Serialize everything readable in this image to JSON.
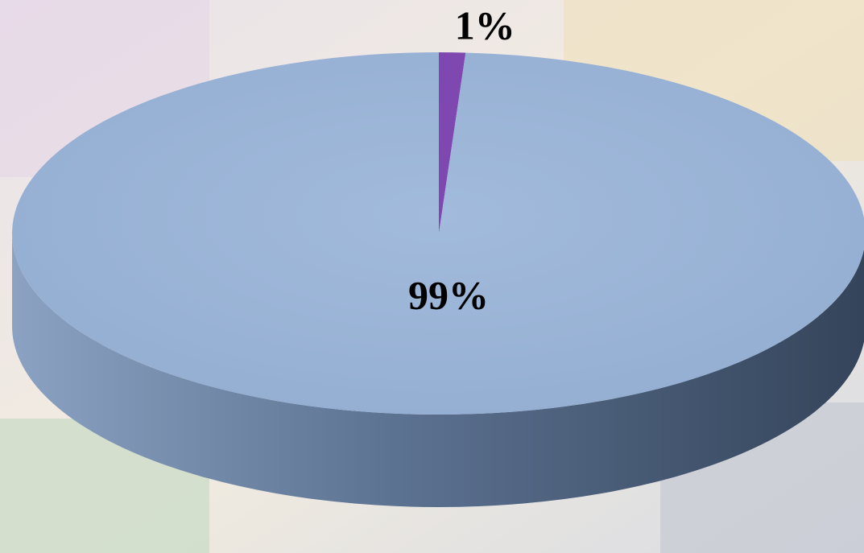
{
  "chart_data": {
    "type": "pie3d",
    "values": [
      1,
      99
    ],
    "value_labels": [
      "1%",
      "99%"
    ],
    "colors": [
      "#7f48b0",
      "#9bb4d6"
    ]
  }
}
